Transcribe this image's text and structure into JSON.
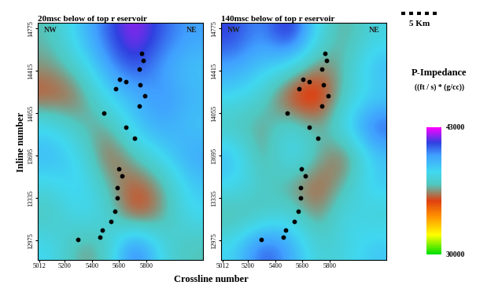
{
  "chart_data": [
    {
      "type": "heatmap",
      "title": "20msc below of top r eservoir",
      "y_label": "Inline number",
      "corner_labels": [
        "NW",
        "NE"
      ],
      "xlim": [
        5000,
        6220
      ],
      "ylim": [
        12810,
        14820
      ],
      "xticks": [
        5012,
        5200,
        5400,
        5600,
        5800
      ],
      "yticks": [
        12975,
        13335,
        13695,
        14055,
        14415,
        14775
      ],
      "cells": [
        [
          37000,
          39000,
          41000,
          42500,
          41000,
          40000
        ],
        [
          36500,
          37500,
          40000,
          41500,
          40000,
          39000
        ],
        [
          35500,
          36000,
          38500,
          39500,
          40500,
          39500
        ],
        [
          38500,
          37000,
          36500,
          39000,
          40000,
          39000
        ],
        [
          39500,
          38500,
          35500,
          37000,
          38500,
          40000
        ],
        [
          38000,
          39000,
          37000,
          35500,
          36500,
          39000
        ],
        [
          37000,
          38500,
          38000,
          35000,
          36500,
          38500
        ],
        [
          38500,
          36500,
          37000,
          41500,
          38000,
          37000
        ]
      ],
      "wells": {
        "x": [
          5768,
          5779,
          5746,
          5606,
          5649,
          5757,
          5574,
          5790,
          5746,
          5487,
          5649,
          5714,
          5595,
          5622,
          5584,
          5584,
          5568,
          5541,
          5476,
          5460,
          5298
        ],
        "y": [
          14565,
          14505,
          14427,
          14343,
          14325,
          14295,
          14265,
          14205,
          14115,
          14055,
          13935,
          13845,
          13587,
          13527,
          13425,
          13335,
          13227,
          13137,
          13065,
          13005,
          12987
        ],
        "color": "#000000",
        "marker": "o"
      }
    },
    {
      "type": "heatmap",
      "title": "140msc below of top r eservoir",
      "corner_labels": [
        "NW",
        "NE"
      ],
      "xlim": [
        5000,
        6220
      ],
      "ylim": [
        12810,
        14820
      ],
      "xticks": [
        5012,
        5200,
        5400,
        5600,
        5800
      ],
      "yticks": [
        12975,
        13335,
        13695,
        14055,
        14415,
        14775
      ],
      "cells": [
        [
          41500,
          40000,
          42500,
          38000,
          36500,
          38000
        ],
        [
          40000,
          39000,
          38000,
          36000,
          37000,
          39500
        ],
        [
          38500,
          37500,
          35000,
          34500,
          37500,
          38500
        ],
        [
          37000,
          36500,
          38000,
          36500,
          38500,
          41500
        ],
        [
          39500,
          36000,
          39000,
          37000,
          35500,
          39000
        ],
        [
          38500,
          37500,
          36500,
          35500,
          37000,
          39000
        ],
        [
          36500,
          37000,
          38000,
          36000,
          38500,
          37500
        ],
        [
          38500,
          41500,
          40000,
          37500,
          38000,
          39000
        ]
      ],
      "wells": {
        "x": [
          5768,
          5779,
          5746,
          5606,
          5649,
          5757,
          5574,
          5790,
          5746,
          5487,
          5649,
          5714,
          5595,
          5622,
          5584,
          5584,
          5568,
          5541,
          5476,
          5460,
          5298
        ],
        "y": [
          14565,
          14505,
          14427,
          14343,
          14325,
          14295,
          14265,
          14205,
          14115,
          14055,
          13935,
          13845,
          13587,
          13527,
          13425,
          13335,
          13227,
          13137,
          13065,
          13005,
          12987
        ],
        "color": "#000000",
        "marker": "o"
      }
    }
  ],
  "x_label": "Crossline number",
  "scale_bar": "5 Km",
  "colorbar": {
    "title": "P-Impedance",
    "unit": "((ft / s) * (g/cc))",
    "range": [
      30000,
      43000
    ],
    "ticks": [
      30000,
      43000
    ]
  }
}
